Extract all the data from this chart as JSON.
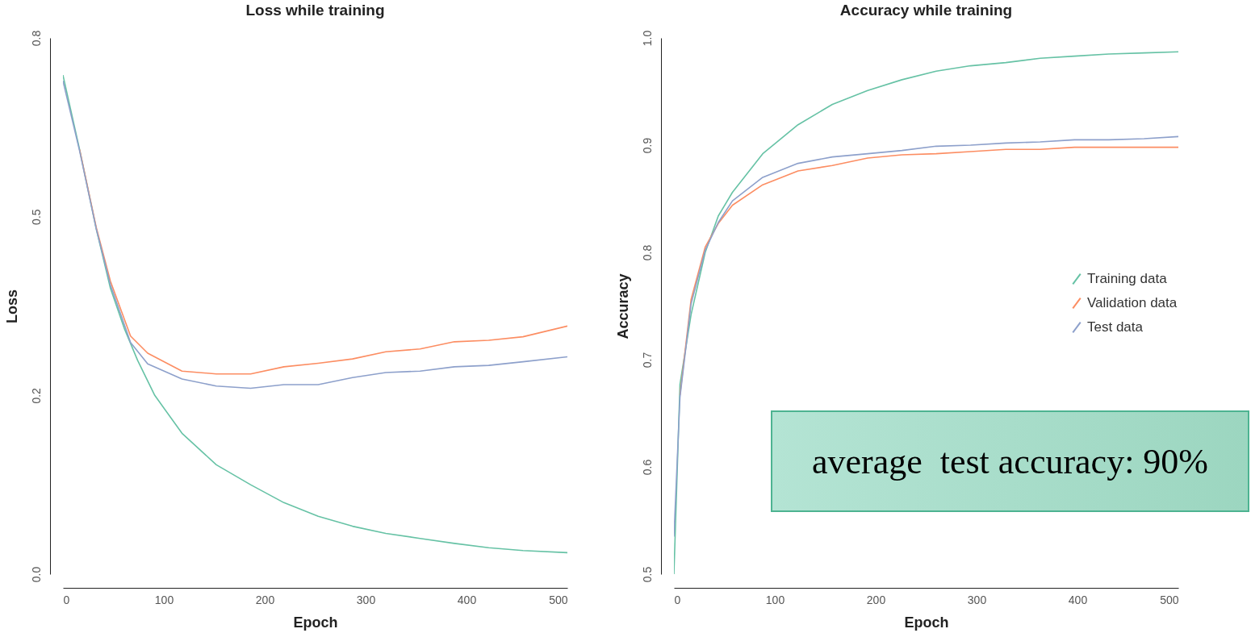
{
  "chart_data": [
    {
      "type": "line",
      "title": "Loss while training",
      "xlabel": "Epoch",
      "ylabel": "Loss",
      "xlim": [
        0,
        500
      ],
      "xticks": [
        0,
        100,
        200,
        300,
        400,
        500
      ],
      "ylim": [
        0,
        0.75
      ],
      "yticks": [
        {
          "value": 0,
          "label": "0.0"
        },
        {
          "value": 0.25,
          "label": "0.2"
        },
        0.5,
        {
          "value": 0.75,
          "label": "0.8"
        }
      ],
      "legend": false,
      "series": [
        {
          "color": "#66c2a5",
          "x": [
            0,
            16.5,
            33,
            47,
            61,
            74,
            91,
            118,
            152,
            186,
            219,
            253,
            287,
            320,
            354,
            388,
            422,
            456,
            500
          ],
          "values": [
            0.698,
            0.594,
            0.483,
            0.4,
            0.343,
            0.299,
            0.25,
            0.197,
            0.153,
            0.125,
            0.1,
            0.081,
            0.067,
            0.057,
            0.05,
            0.043,
            0.037,
            0.033,
            0.03
          ]
        },
        {
          "color": "#fc8d62",
          "x": [
            16.5,
            33,
            47,
            67,
            84,
            118,
            152,
            186,
            219,
            253,
            287,
            320,
            354,
            388,
            422,
            456,
            500
          ],
          "values": [
            0.594,
            0.485,
            0.41,
            0.333,
            0.309,
            0.284,
            0.28,
            0.28,
            0.29,
            0.295,
            0.301,
            0.311,
            0.315,
            0.325,
            0.327,
            0.332,
            0.347
          ]
        },
        {
          "color": "#8da0cb",
          "x": [
            0,
            16.5,
            33,
            47,
            67,
            84,
            118,
            152,
            186,
            219,
            253,
            287,
            320,
            354,
            388,
            422,
            456,
            500
          ],
          "values": [
            0.69,
            0.592,
            0.483,
            0.405,
            0.324,
            0.294,
            0.273,
            0.263,
            0.26,
            0.265,
            0.265,
            0.275,
            0.282,
            0.284,
            0.29,
            0.292,
            0.297,
            0.304
          ]
        }
      ]
    },
    {
      "type": "line",
      "title": "Accuracy while training",
      "xlabel": "Epoch",
      "ylabel": "Accuracy",
      "xlim": [
        0,
        500
      ],
      "xticks": [
        0,
        100,
        200,
        300,
        400,
        500
      ],
      "ylim": [
        0.5,
        1
      ],
      "yticks": [
        0.5,
        0.6,
        0.7,
        0.8,
        0.9,
        {
          "value": 1,
          "label": "1.0"
        }
      ],
      "legend": "right",
      "annotations": [
        "average  test accuracy: 90%"
      ],
      "series": [
        {
          "name": "Training data",
          "color": "#66c2a5",
          "x": [
            0,
            6,
            17,
            31,
            44,
            58,
            88,
            123,
            157,
            192,
            226,
            260,
            294,
            329,
            363,
            397,
            431,
            466,
            500
          ],
          "values": [
            0.5,
            0.677,
            0.742,
            0.8,
            0.834,
            0.856,
            0.892,
            0.919,
            0.938,
            0.951,
            0.961,
            0.969,
            0.974,
            0.977,
            0.981,
            0.983,
            0.985,
            0.986,
            0.987
          ]
        },
        {
          "name": "Validation data",
          "color": "#fc8d62",
          "x": [
            6,
            17,
            31,
            44,
            58,
            88,
            123,
            157,
            192,
            226,
            260,
            294,
            329,
            363,
            397,
            431,
            466,
            500
          ],
          "values": [
            0.667,
            0.756,
            0.805,
            0.827,
            0.844,
            0.863,
            0.876,
            0.881,
            0.888,
            0.891,
            0.892,
            0.894,
            0.896,
            0.896,
            0.898,
            0.898,
            0.898,
            0.898
          ]
        },
        {
          "name": "Test data",
          "color": "#8da0cb",
          "x": [
            0,
            6,
            17,
            31,
            44,
            58,
            88,
            123,
            157,
            192,
            226,
            260,
            294,
            329,
            363,
            397,
            431,
            466,
            500
          ],
          "values": [
            0.535,
            0.665,
            0.752,
            0.802,
            0.828,
            0.848,
            0.87,
            0.883,
            0.889,
            0.892,
            0.895,
            0.899,
            0.9,
            0.902,
            0.903,
            0.905,
            0.905,
            0.906,
            0.908
          ]
        }
      ]
    }
  ]
}
